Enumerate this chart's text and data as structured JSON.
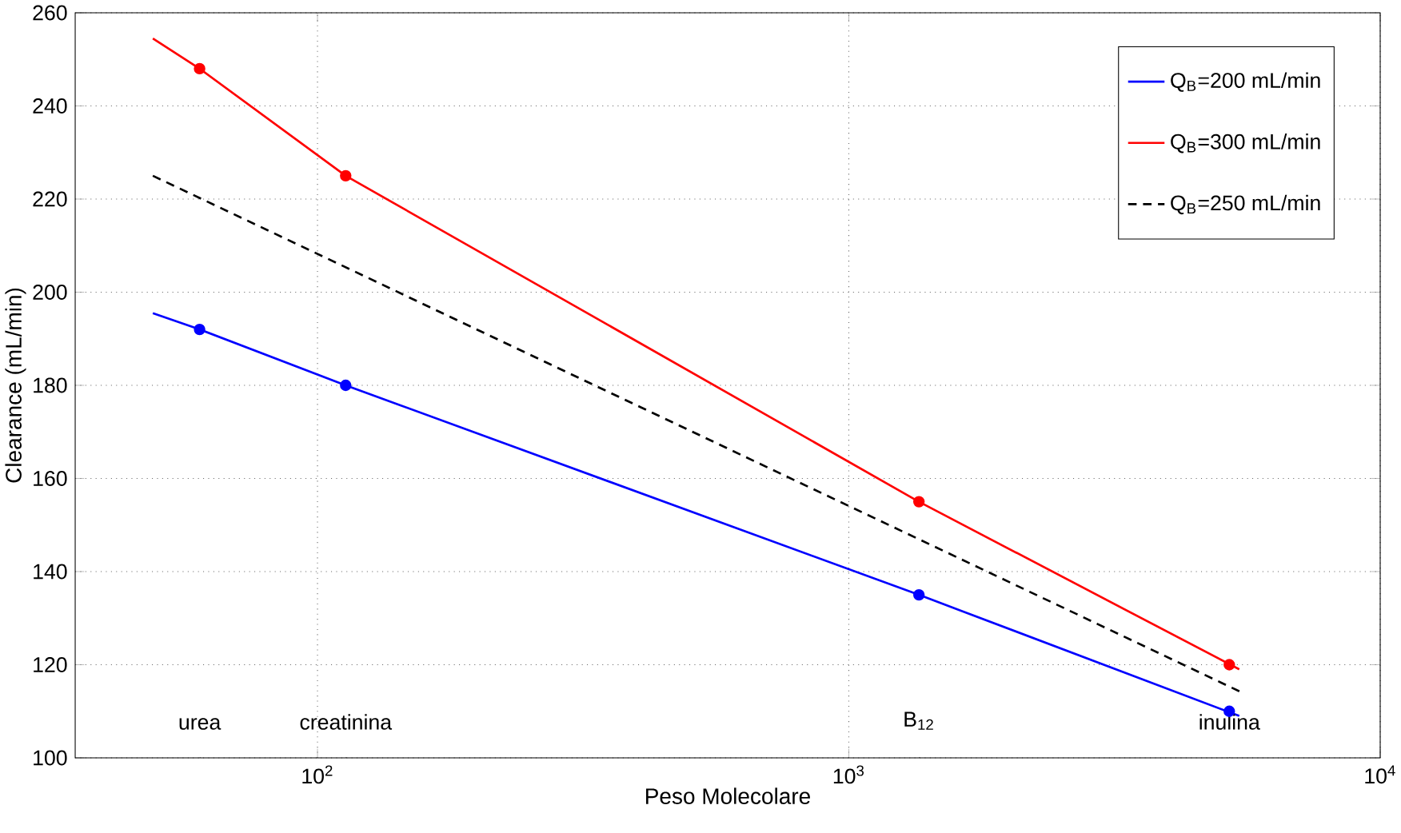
{
  "chart_data": {
    "type": "line",
    "xlabel": "Peso Molecolare",
    "ylabel": "Clearance (mL/min)",
    "log": "x",
    "grid": true,
    "legend": "top right",
    "xlim": [
      35,
      10000
    ],
    "ylim": [
      100,
      260
    ],
    "xticks": [
      {
        "value": 100,
        "label": "10$^{2}$"
      },
      {
        "value": 1000,
        "label": "10$^{3}$"
      },
      {
        "value": 10000,
        "label": "10$^{4}$"
      }
    ],
    "yticks": [
      100,
      120,
      140,
      160,
      180,
      200,
      220,
      240,
      260
    ],
    "series": [
      {
        "name": "Q$_{B}$=200 mL/min",
        "color": "#0000ff",
        "line_style": "solid",
        "x": [
          49,
          60,
          113,
          1355,
          5430
        ],
        "values": [
          195.5,
          192,
          180,
          135,
          109
        ]
      },
      {
        "name": "Q$_{B}$=300 mL/min",
        "color": "#ff0000",
        "line_style": "solid",
        "x": [
          49,
          60,
          113,
          1355,
          5430
        ],
        "values": [
          254.5,
          248,
          225,
          155,
          119
        ]
      },
      {
        "name": "Q$_{B}$=250 mL/min",
        "color": "#000000",
        "line_style": "dashed",
        "x": [
          49,
          5500
        ],
        "values": [
          225,
          114
        ]
      },
      {
        "color": "#0000ff",
        "type": "scatter",
        "marker": "circle",
        "x": [
          60,
          113,
          1355,
          5200
        ],
        "values": [
          192,
          180,
          135,
          110
        ]
      },
      {
        "color": "#ff0000",
        "type": "scatter",
        "marker": "circle",
        "x": [
          60,
          113,
          1355,
          5200
        ],
        "values": [
          248,
          225,
          155,
          120
        ]
      }
    ],
    "annotations": [
      "urea",
      "creatinina",
      "B$_{12}$",
      "inulina"
    ]
  }
}
